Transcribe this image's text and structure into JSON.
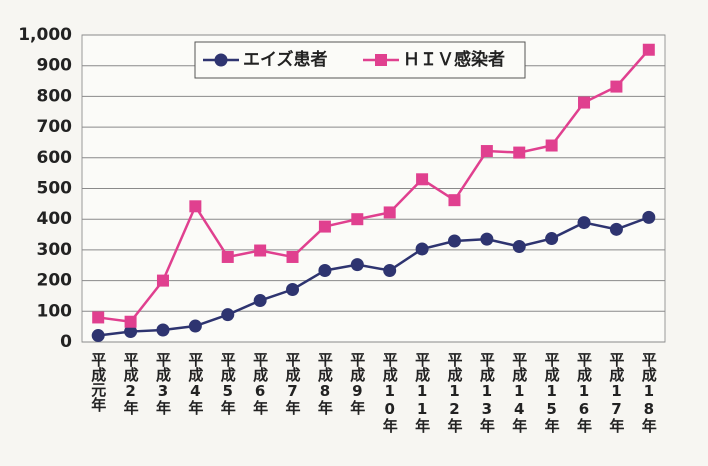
{
  "chart_data": {
    "type": "line",
    "categories": [
      "平成元年",
      "平成2年",
      "平成3年",
      "平成4年",
      "平成5年",
      "平成6年",
      "平成7年",
      "平成8年",
      "平成9年",
      "平成10年",
      "平成11年",
      "平成12年",
      "平成13年",
      "平成14年",
      "平成15年",
      "平成16年",
      "平成17年",
      "平成18年"
    ],
    "series": [
      {
        "name": "エイズ患者",
        "color": "#2e3470",
        "marker": "circle",
        "values": [
          21,
          34,
          39,
          52,
          89,
          135,
          171,
          233,
          252,
          233,
          303,
          329,
          335,
          311,
          337,
          389,
          367,
          406
        ]
      },
      {
        "name": "ＨＩＶ感染者",
        "color": "#e0408f",
        "marker": "square",
        "values": [
          80,
          66,
          200,
          442,
          277,
          298,
          277,
          376,
          400,
          422,
          530,
          462,
          622,
          617,
          640,
          780,
          832,
          952
        ]
      }
    ],
    "ylim": [
      0,
      1000
    ],
    "yticks": [
      0,
      100,
      200,
      300,
      400,
      500,
      600,
      700,
      800,
      900,
      {
        "value": 1000,
        "label": "1,000"
      }
    ],
    "grid": true,
    "legend": "top"
  }
}
